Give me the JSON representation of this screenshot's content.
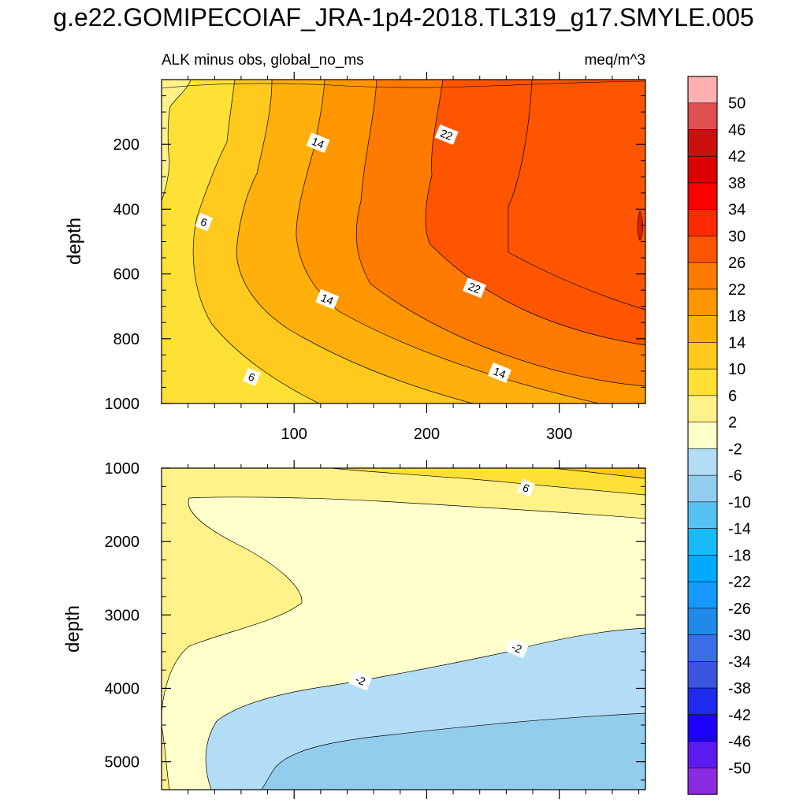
{
  "title": "g.e22.GOMIPECOIAF_JRA-1p4-2018.TL319_g17.SMYLE.005",
  "colors": {
    "colorbar": [
      "#8a2be2",
      "#5a1af0",
      "#1e00ff",
      "#1e2bee",
      "#3b55e0",
      "#3a6ee8",
      "#1f8ae8",
      "#1599ff",
      "#00aaff",
      "#18bbf5",
      "#55c3f2",
      "#93cdee",
      "#b3ddf5",
      "#ffffcc",
      "#fff28a",
      "#ffe135",
      "#ffc91e",
      "#ffb00a",
      "#ff9600",
      "#ff7a00",
      "#ff5500",
      "#ff2a00",
      "#ff0000",
      "#dd0000",
      "#cc1010",
      "#e05050",
      "#ffb0b0"
    ],
    "top_panel_bg": "#ff5500",
    "bottom_panel_bg": "#93cdee"
  },
  "chart_data": [
    {
      "type": "contour",
      "name": "upper",
      "left_label": "ALK minus obs, global_no_ms",
      "right_label": "meq/m^3",
      "ylabel": "depth",
      "xlabel": "",
      "xlim": [
        0,
        365
      ],
      "ylim": [
        1000,
        0
      ],
      "x_ticks": [
        100,
        200,
        300
      ],
      "y_ticks": [
        200,
        400,
        600,
        800,
        1000
      ],
      "contour_labels": [
        {
          "text": "6",
          "x": 32,
          "y": 440
        },
        {
          "text": "6",
          "x": 68,
          "y": 918
        },
        {
          "text": "14",
          "x": 118,
          "y": 195
        },
        {
          "text": "14",
          "x": 125,
          "y": 678
        },
        {
          "text": "14",
          "x": 255,
          "y": 905
        },
        {
          "text": "22",
          "x": 215,
          "y": 170
        },
        {
          "text": "22",
          "x": 236,
          "y": 643
        }
      ]
    },
    {
      "type": "contour",
      "name": "lower",
      "ylabel": "depth",
      "xlabel": "",
      "xlim": [
        0,
        365
      ],
      "ylim": [
        5380,
        1000
      ],
      "x_ticks": [
        100,
        200,
        300
      ],
      "y_ticks": [
        1000,
        2000,
        3000,
        4000,
        5000
      ],
      "contour_labels": [
        {
          "text": "6",
          "x": 275,
          "y": 1270
        },
        {
          "text": "-2",
          "x": 150,
          "y": 3890
        },
        {
          "text": "-2",
          "x": 268,
          "y": 3450
        }
      ]
    }
  ],
  "colorbar": {
    "labels": [
      "50",
      "46",
      "42",
      "38",
      "34",
      "30",
      "26",
      "22",
      "18",
      "14",
      "10",
      "6",
      "2",
      "-2",
      "-6",
      "-10",
      "-14",
      "-18",
      "-22",
      "-26",
      "-30",
      "-34",
      "-38",
      "-42",
      "-46",
      "-50"
    ]
  }
}
